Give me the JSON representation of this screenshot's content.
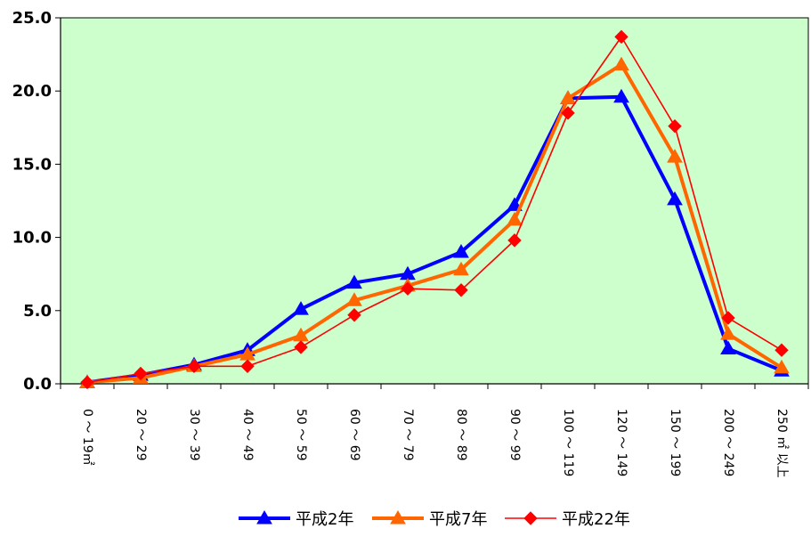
{
  "chart_data": {
    "type": "line",
    "title": "",
    "xlabel": "",
    "ylabel": "",
    "categories": [
      "0 ～ 19㎡",
      "20 ～ 29",
      "30 ～ 39",
      "40 ～ 49",
      "50 ～ 59",
      "60 ～ 69",
      "70 ～ 79",
      "80 ～ 89",
      "90 ～ 99",
      "100 ～ 119",
      "120 ～ 149",
      "150 ～ 199",
      "200 ～ 249",
      "250 ㎡ 以上"
    ],
    "ylim": [
      0,
      25
    ],
    "yticks": [
      "0.0",
      "5.0",
      "10.0",
      "15.0",
      "20.0",
      "25.0"
    ],
    "grid": false,
    "plot_background": "#ccffcc",
    "legend_position": "bottom",
    "series": [
      {
        "name": "平成2年",
        "color": "#0000ff",
        "marker": "triangle",
        "values": [
          0.1,
          0.6,
          1.3,
          2.3,
          5.1,
          6.9,
          7.5,
          9.0,
          12.2,
          19.5,
          19.6,
          12.6,
          2.4,
          0.9
        ]
      },
      {
        "name": "平成7年",
        "color": "#ff6600",
        "marker": "triangle",
        "values": [
          0.1,
          0.4,
          1.2,
          2.0,
          3.3,
          5.7,
          6.7,
          7.8,
          11.2,
          19.5,
          21.8,
          15.5,
          3.4,
          1.1
        ]
      },
      {
        "name": "平成22年",
        "color": "#ff0000",
        "marker": "diamond",
        "values": [
          0.1,
          0.7,
          1.2,
          1.2,
          2.5,
          4.7,
          6.5,
          6.4,
          9.8,
          18.5,
          23.7,
          17.6,
          4.5,
          2.3
        ]
      }
    ]
  }
}
